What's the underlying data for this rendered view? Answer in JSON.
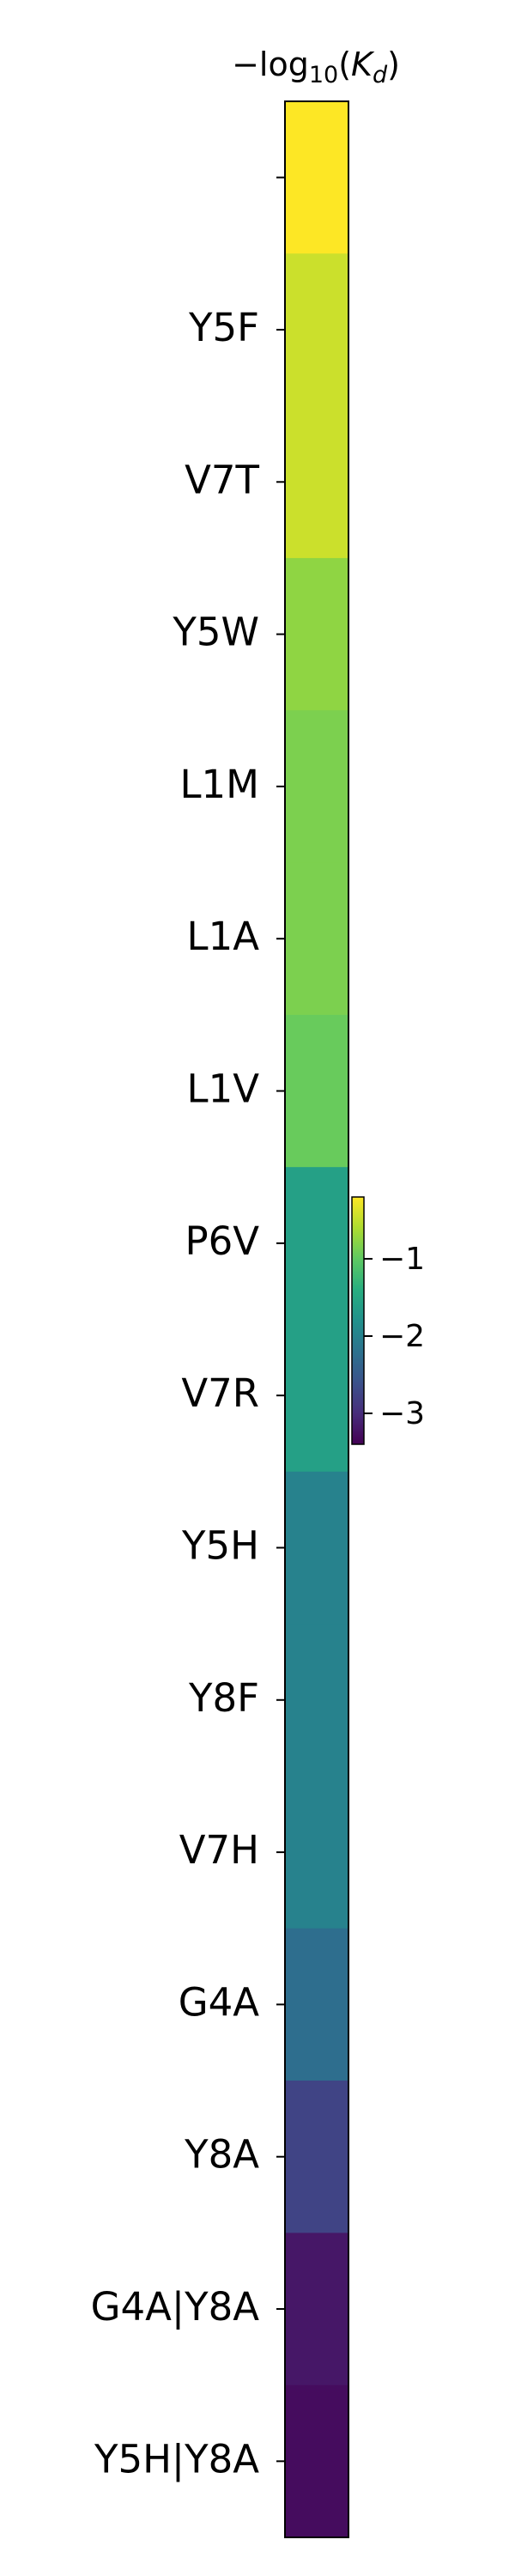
{
  "chart_data": {
    "type": "heatmap",
    "title": "−log₁₀(K_d)",
    "title_main": "−log",
    "title_sub": "10",
    "title_paren_open": "(",
    "title_k": "K",
    "title_k_sub": "d",
    "title_paren_close": ")",
    "categories": [
      "",
      "Y5F",
      "V7T",
      "Y5W",
      "L1M",
      "L1A",
      "L1V",
      "P6V",
      "V7R",
      "Y5H",
      "Y8F",
      "V7H",
      "G4A",
      "Y8A",
      "G4A|Y8A",
      "Y5H|Y8A"
    ],
    "values": [
      -0.2,
      -0.45,
      -0.45,
      -0.75,
      -0.85,
      -0.85,
      -0.95,
      -1.6,
      -1.6,
      -2.0,
      -2.0,
      -2.0,
      -2.25,
      -2.75,
      -3.2,
      -3.3
    ],
    "colorscale": "viridis",
    "vmin": -3.4,
    "vmax": -0.2,
    "colorbar_ticks": [
      -1,
      -2,
      -3
    ],
    "colorbar_tick_labels": [
      "−1",
      "−2",
      "−3"
    ]
  }
}
